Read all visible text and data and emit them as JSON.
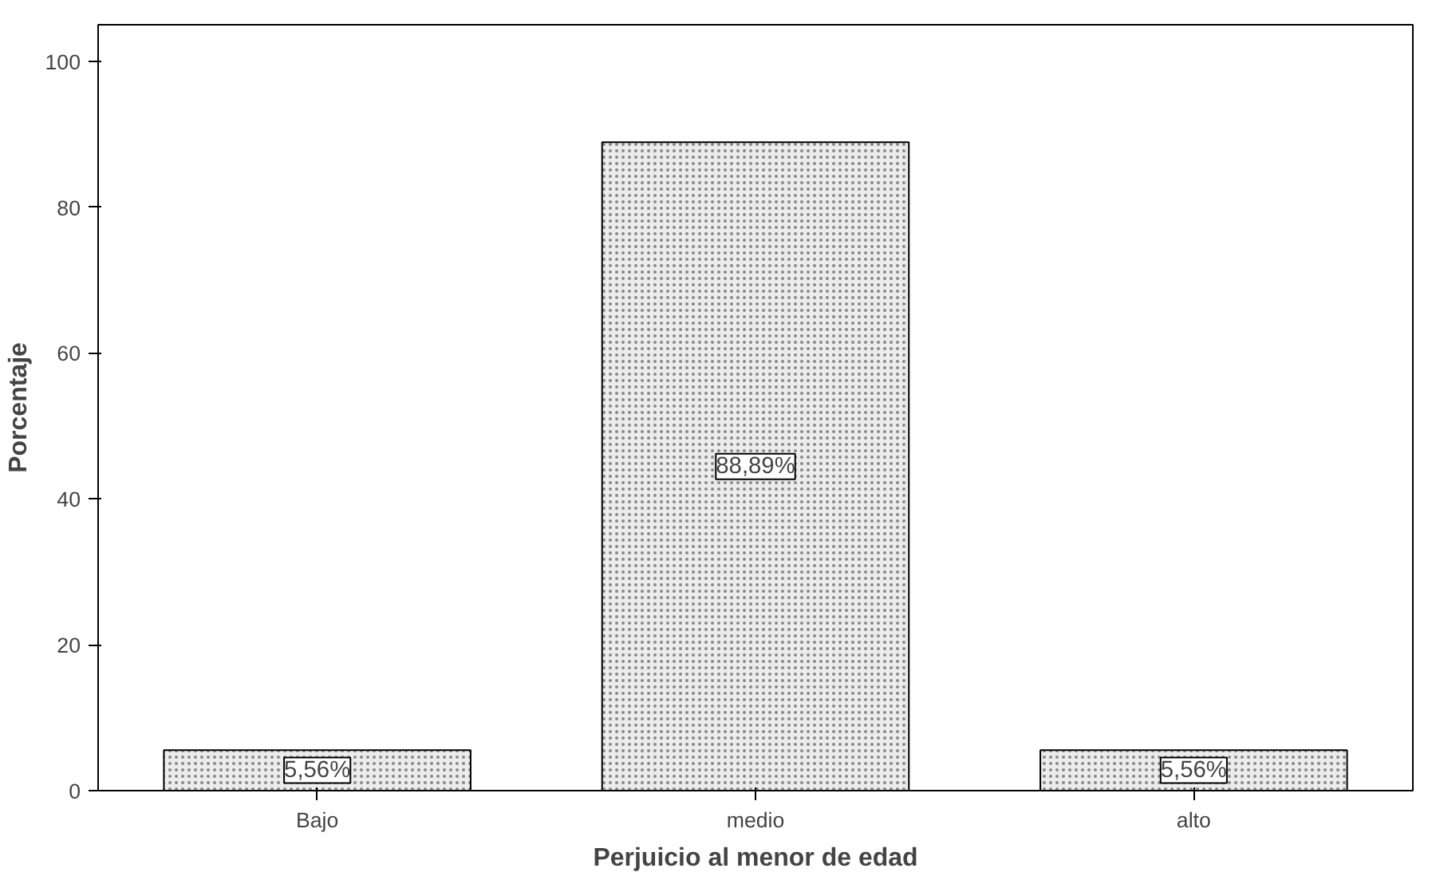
{
  "chart_data": {
    "type": "bar",
    "xlabel": "Perjuicio al menor de edad",
    "ylabel": "Porcentaje",
    "categories": [
      "Bajo",
      "medio",
      "alto"
    ],
    "values": [
      5.56,
      88.89,
      5.56
    ],
    "value_labels": [
      "5,56%",
      "88,89%",
      "5,56%"
    ],
    "color": "#ececec",
    "ylim": [
      0,
      105
    ],
    "yticks": [
      0,
      20,
      40,
      60,
      80,
      100
    ],
    "grid": false
  }
}
